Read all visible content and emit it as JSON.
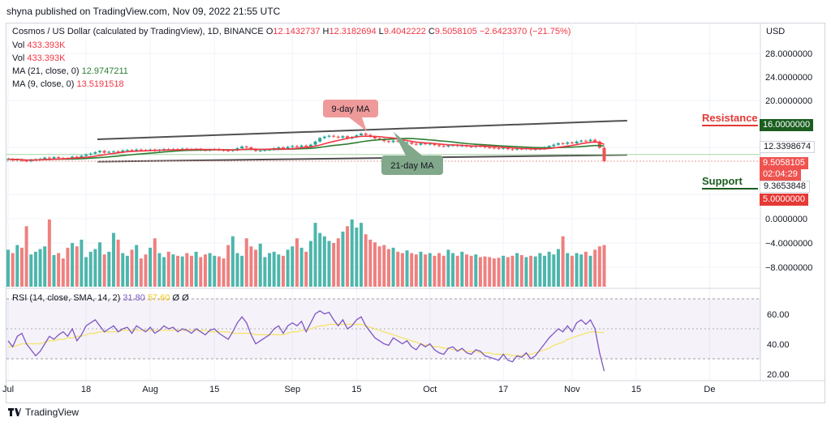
{
  "caption": "shyna published on TradingView.com, Nov 09, 2022 21:55 UTC",
  "brand": "TradingView",
  "header": {
    "title": "Cosmos / US Dollar (calculated by TradingView), 1D, BINANCE",
    "ohlc": [
      {
        "k": "O",
        "v": "12.1432737"
      },
      {
        "k": "H",
        "v": "12.3182694"
      },
      {
        "k": "L",
        "v": "9.4042222"
      },
      {
        "k": "C",
        "v": "9.5058105"
      }
    ],
    "change": "−2.6423370 (−21.75%)",
    "rows": [
      {
        "label": "Vol",
        "value": "433.393K"
      },
      {
        "label": "Vol",
        "value": "433.393K"
      },
      {
        "label": "MA (21, close, 0)",
        "value": "12.9747211"
      },
      {
        "label": "MA (9, close, 0)",
        "value": "13.5191518"
      }
    ]
  },
  "currency": "USD",
  "annotations": {
    "ma9": "9-day MA",
    "ma21": "21-day MA",
    "resistance": "Resistance",
    "support": "Support"
  },
  "price_tags": {
    "resistance": "16.0000000",
    "ma_level": "12.3398674",
    "last_price": "9.5058105",
    "countdown": "02:04:29",
    "ma_level2": "9.3653848",
    "support": "5.0000000"
  },
  "rsi_label": "RSI (14, close, SMA, 14, 2)",
  "rsi_values": [
    "31.80",
    "57.60",
    "Ø",
    "Ø"
  ],
  "colors": {
    "up": "#26a69a",
    "down": "#ef5350",
    "ma9": "#f23645",
    "ma21": "#2e7d32",
    "rsi": "#7e57c2",
    "rsi_ma": "#f5e46b",
    "channel": "#505050"
  },
  "chart_data": {
    "type": "candlestick",
    "y_ticks": [
      "28.0000000",
      "24.0000000",
      "20.0000000",
      "0.0000000",
      "−4.0000000",
      "−8.0000000"
    ],
    "rsi_ticks": [
      "60.00",
      "40.00",
      "20.00"
    ],
    "x_ticks": [
      "Jul",
      "18",
      "Aug",
      "15",
      "Sep",
      "15",
      "Oct",
      "17",
      "Nov",
      "15",
      "De"
    ],
    "x_tick_day": [
      0,
      17,
      31,
      45,
      62,
      76,
      92,
      108,
      123,
      137,
      153
    ],
    "ylim": [
      7.5,
      23.5
    ],
    "close": [
      10.0,
      9.7,
      9.9,
      9.6,
      9.5,
      9.8,
      9.9,
      10.0,
      10.3,
      10.1,
      10.4,
      10.2,
      10.1,
      10.0,
      10.5,
      10.3,
      10.7,
      11.0,
      11.2,
      11.5,
      11.8,
      11.4,
      11.6,
      11.7,
      11.5,
      11.9,
      12.0,
      11.8,
      12.1,
      12.0,
      11.9,
      12.1,
      11.8,
      12.0,
      12.2,
      12.1,
      12.2,
      12.0,
      12.3,
      12.2,
      12.1,
      12.2,
      12.0,
      11.9,
      12.1,
      12.2,
      12.0,
      11.9,
      11.8,
      12.0,
      12.4,
      12.8,
      12.6,
      12.2,
      11.8,
      11.9,
      12.0,
      12.1,
      12.4,
      12.6,
      12.3,
      12.7,
      12.9,
      12.7,
      13.0,
      12.6,
      13.2,
      13.9,
      14.7,
      15.0,
      15.2,
      15.0,
      14.8,
      15.1,
      14.6,
      14.9,
      15.3,
      15.7,
      15.4,
      15.0,
      14.6,
      14.4,
      14.0,
      13.8,
      14.1,
      13.9,
      13.6,
      13.7,
      13.4,
      13.2,
      13.5,
      13.3,
      13.4,
      13.1,
      12.9,
      12.8,
      13.0,
      13.1,
      12.9,
      13.0,
      12.8,
      12.7,
      12.9,
      12.8,
      12.6,
      12.5,
      12.4,
      12.3,
      12.5,
      12.2,
      12.1,
      12.3,
      12.2,
      12.4,
      12.1,
      12.2,
      12.3,
      12.6,
      12.9,
      13.2,
      13.5,
      13.4,
      13.7,
      13.5,
      13.9,
      14.1,
      14.0,
      14.3,
      13.9,
      12.5,
      9.5
    ],
    "volume": [
      0.55,
      0.5,
      0.62,
      0.58,
      0.9,
      0.48,
      0.52,
      0.56,
      0.6,
      1.0,
      0.47,
      0.5,
      0.42,
      0.58,
      0.65,
      0.6,
      0.7,
      0.44,
      0.52,
      0.56,
      0.66,
      0.48,
      0.52,
      0.8,
      0.7,
      0.5,
      0.46,
      0.55,
      0.62,
      0.42,
      0.48,
      0.58,
      0.72,
      0.5,
      0.44,
      0.52,
      0.48,
      0.46,
      0.45,
      0.5,
      0.46,
      0.52,
      0.44,
      0.48,
      0.5,
      0.46,
      0.45,
      0.42,
      0.62,
      0.75,
      0.5,
      0.46,
      0.72,
      0.6,
      0.55,
      0.64,
      0.44,
      0.5,
      0.52,
      0.48,
      0.46,
      0.55,
      0.6,
      0.72,
      0.58,
      0.52,
      0.68,
      0.95,
      0.8,
      0.75,
      0.68,
      0.65,
      0.72,
      0.82,
      0.9,
      1.0,
      0.88,
      0.95,
      0.78,
      0.7,
      0.66,
      0.6,
      0.62,
      0.56,
      0.58,
      0.52,
      0.5,
      0.54,
      0.5,
      0.48,
      0.52,
      0.48,
      0.5,
      0.46,
      0.5,
      0.46,
      0.55,
      0.5,
      0.46,
      0.52,
      0.48,
      0.46,
      0.48,
      0.44,
      0.45,
      0.44,
      0.42,
      0.43,
      0.46,
      0.44,
      0.46,
      0.5,
      0.47,
      0.44,
      0.46,
      0.45,
      0.5,
      0.46,
      0.52,
      0.48,
      0.56,
      0.75,
      0.5,
      0.46,
      0.5,
      0.48,
      0.52,
      0.46,
      0.55,
      0.6,
      0.62
    ],
    "rsi": [
      52,
      48,
      55,
      57,
      50,
      46,
      42,
      45,
      50,
      55,
      53,
      56,
      58,
      55,
      60,
      52,
      56,
      62,
      64,
      66,
      62,
      58,
      60,
      62,
      58,
      60,
      61,
      57,
      62,
      60,
      58,
      61,
      57,
      59,
      62,
      60,
      61,
      58,
      60,
      59,
      57,
      60,
      58,
      56,
      59,
      60,
      57,
      55,
      53,
      58,
      64,
      68,
      64,
      56,
      50,
      52,
      54,
      56,
      60,
      62,
      57,
      62,
      64,
      62,
      65,
      58,
      64,
      70,
      72,
      70,
      71,
      66,
      62,
      66,
      60,
      62,
      66,
      68,
      62,
      58,
      54,
      52,
      50,
      49,
      54,
      52,
      50,
      52,
      48,
      46,
      50,
      48,
      50,
      46,
      44,
      43,
      47,
      48,
      45,
      47,
      44,
      43,
      46,
      45,
      42,
      41,
      40,
      39,
      43,
      39,
      38,
      42,
      41,
      44,
      40,
      42,
      46,
      50,
      54,
      57,
      60,
      58,
      62,
      58,
      64,
      66,
      63,
      66,
      60,
      44,
      31.8
    ],
    "rsi_ma": [
      48,
      48,
      49,
      50,
      50,
      50,
      50,
      50,
      51,
      52,
      52,
      53,
      53,
      54,
      54,
      55,
      55,
      56,
      57,
      57,
      58,
      58,
      58,
      58,
      58,
      59,
      59,
      59,
      59,
      59,
      59,
      59,
      59,
      59,
      59,
      59,
      59,
      59,
      59,
      59,
      59,
      59,
      59,
      59,
      58,
      58,
      58,
      58,
      58,
      57,
      57,
      57,
      57,
      57,
      56,
      56,
      56,
      56,
      56,
      56,
      56,
      57,
      58,
      58,
      59,
      59,
      60,
      61,
      62,
      62,
      63,
      63,
      63,
      63,
      63,
      63,
      63,
      63,
      62,
      61,
      60,
      59,
      58,
      57,
      56,
      55,
      54,
      53,
      52,
      51,
      50,
      49,
      49,
      48,
      48,
      47,
      47,
      46,
      46,
      46,
      45,
      45,
      45,
      44,
      44,
      44,
      43,
      43,
      43,
      43,
      42,
      42,
      42,
      43,
      43,
      44,
      45,
      46,
      47,
      49,
      50,
      51,
      53,
      54,
      55,
      56,
      57,
      58,
      58,
      57.6,
      57.6
    ],
    "channel_upper": {
      "from": [
        0,
        14.4
      ],
      "to": [
        135,
        18.6
      ]
    },
    "channel_lower": {
      "from": [
        0,
        9.4
      ],
      "to": [
        135,
        10.9
      ]
    },
    "levels": {
      "resistance": 16.0,
      "support": 5.0
    }
  }
}
